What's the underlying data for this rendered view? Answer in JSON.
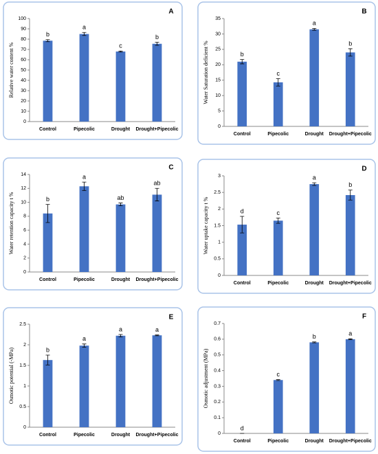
{
  "chart_data": [
    {
      "type": "bar",
      "panel": "A",
      "ylabel": "Relative water content %",
      "categories": [
        "Control",
        "Pipecolic",
        "Drought",
        "Drought+Pipecolic"
      ],
      "values": [
        78.5,
        85,
        68,
        75.5
      ],
      "errors": [
        1,
        1.5,
        0.5,
        1.5
      ],
      "letters": [
        "b",
        "a",
        "c",
        "b"
      ],
      "color": "#4472c4",
      "ylim": [
        0,
        100
      ],
      "yticks": [
        0,
        10,
        20,
        30,
        40,
        50,
        60,
        70,
        80,
        90,
        100
      ]
    },
    {
      "type": "bar",
      "panel": "B",
      "ylabel": "Water Saturation deficient %",
      "categories": [
        "Control",
        "Pipecolic",
        "Drought",
        "Drought+Pipecolic"
      ],
      "values": [
        21,
        14.3,
        31.5,
        24
      ],
      "errors": [
        0.7,
        1.2,
        0.3,
        1.2
      ],
      "letters": [
        "b",
        "c",
        "a",
        "b"
      ],
      "color": "#4472c4",
      "ylim": [
        0,
        35
      ],
      "yticks": [
        0,
        5,
        10,
        15,
        20,
        25,
        30,
        35
      ]
    },
    {
      "type": "bar",
      "panel": "C",
      "ylabel": "Water retention capacity t %",
      "categories": [
        "Control",
        "Pipecolic",
        "Drought",
        "Drought+Pipecolic"
      ],
      "values": [
        8.4,
        12.3,
        9.7,
        11.1
      ],
      "errors": [
        1.3,
        0.6,
        0.2,
        0.9
      ],
      "letters": [
        "b",
        "a",
        "ab",
        "ab"
      ],
      "color": "#4472c4",
      "ylim": [
        0,
        14
      ],
      "yticks": [
        0,
        2,
        4,
        6,
        8,
        10,
        12,
        14
      ]
    },
    {
      "type": "bar",
      "panel": "D",
      "ylabel": "Water uptake capacity t %",
      "categories": [
        "Control",
        "Pipecolic",
        "Drought",
        "Drought+Pipecolic"
      ],
      "values": [
        1.53,
        1.65,
        2.75,
        2.42
      ],
      "errors": [
        0.25,
        0.08,
        0.04,
        0.15
      ],
      "letters": [
        "d",
        "c",
        "a",
        "b"
      ],
      "color": "#4472c4",
      "ylim": [
        0,
        3
      ],
      "yticks": [
        0,
        0.5,
        1,
        1.5,
        2,
        2.5,
        3
      ]
    },
    {
      "type": "bar",
      "panel": "E",
      "ylabel": "Osmotic potential (-MPa)",
      "categories": [
        "Control",
        "Pipecolic",
        "Drought",
        "Drought+Pipecolic"
      ],
      "values": [
        1.63,
        1.98,
        2.22,
        2.23
      ],
      "errors": [
        0.12,
        0.04,
        0.03,
        0.01
      ],
      "letters": [
        "b",
        "a",
        "a",
        "a"
      ],
      "color": "#4472c4",
      "ylim": [
        0,
        2.5
      ],
      "yticks": [
        0,
        0.5,
        1,
        1.5,
        2,
        2.5
      ]
    },
    {
      "type": "bar",
      "panel": "F",
      "ylabel": "Osmotic adjustment (MPa)",
      "categories": [
        "Control",
        "Pipecolic",
        "Drought",
        "Drought+Pipecolic"
      ],
      "values": [
        0,
        0.34,
        0.58,
        0.6
      ],
      "errors": [
        0,
        0.003,
        0.003,
        0.003
      ],
      "letters": [
        "d",
        "c",
        "b",
        "a"
      ],
      "color": "#4472c4",
      "ylim": [
        0,
        0.7
      ],
      "yticks": [
        0,
        0.1,
        0.2,
        0.3,
        0.4,
        0.5,
        0.6,
        0.7
      ]
    }
  ]
}
